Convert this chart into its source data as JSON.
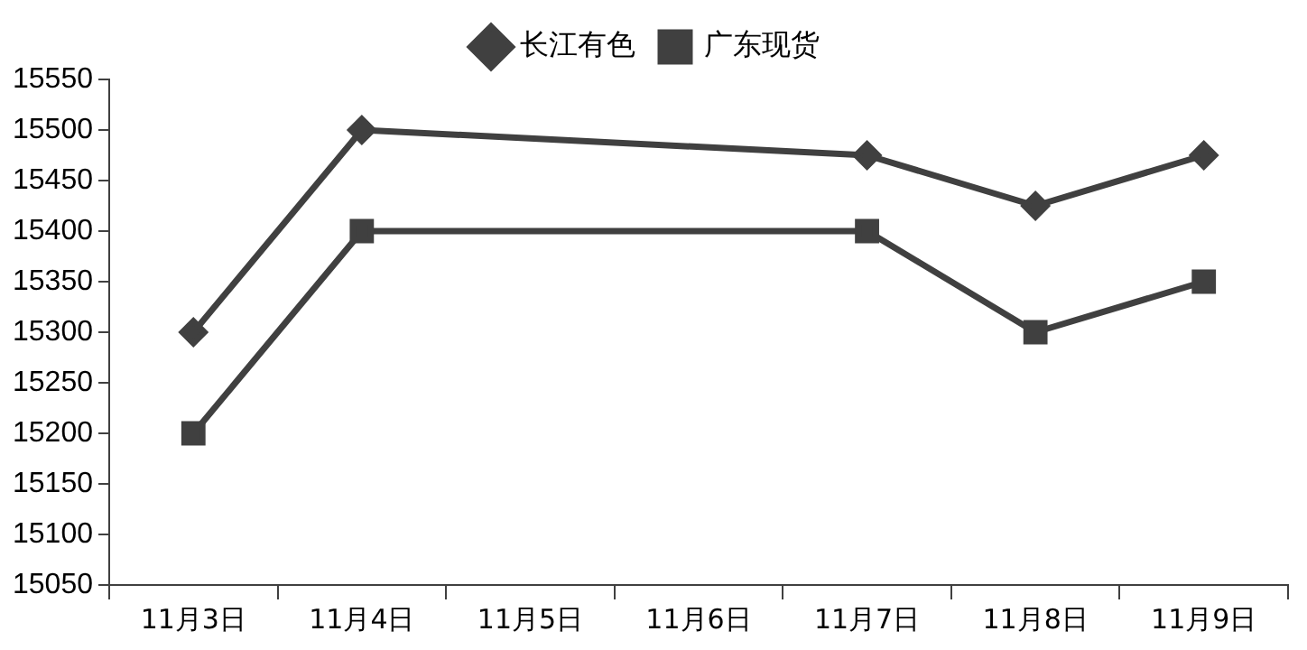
{
  "chart_data": {
    "type": "line",
    "categories": [
      "11月3日",
      "11月4日",
      "11月5日",
      "11月6日",
      "11月7日",
      "11月8日",
      "11月9日"
    ],
    "series": [
      {
        "name": "长江有色",
        "color": "#404040",
        "marker": "diamond",
        "values": [
          15300,
          15500,
          null,
          null,
          15475,
          15425,
          15475
        ]
      },
      {
        "name": "广东现货",
        "color": "#404040",
        "marker": "square",
        "values": [
          15200,
          15400,
          null,
          null,
          15400,
          15300,
          15350
        ]
      }
    ],
    "ylim": [
      15050,
      15550
    ],
    "yticks": [
      15050,
      15100,
      15150,
      15200,
      15250,
      15300,
      15350,
      15400,
      15450,
      15500,
      15550
    ],
    "grid": false,
    "legend": "top"
  }
}
